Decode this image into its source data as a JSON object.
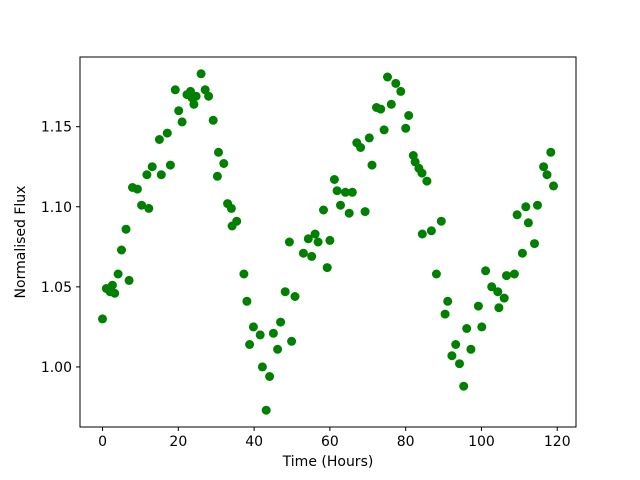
{
  "figure": {
    "background_color": "#ffffff"
  },
  "chart_data": {
    "type": "scatter",
    "title": "",
    "xlabel": "Time (Hours)",
    "ylabel": "Normalised Flux",
    "legend": null,
    "grid": false,
    "marker_color": "#008000",
    "marker_radius_px": 4.5,
    "xlim": [
      -5.95,
      124.95
    ],
    "ylim": [
      0.9625,
      1.1935
    ],
    "xticks": [
      "0",
      "20",
      "40",
      "60",
      "80",
      "100",
      "120"
    ],
    "yticks": [
      "1.00",
      "1.05",
      "1.10",
      "1.15"
    ],
    "points": [
      [
        0.0,
        1.03
      ],
      [
        1.0,
        1.049
      ],
      [
        2.0,
        1.047
      ],
      [
        2.6,
        1.051
      ],
      [
        3.2,
        1.046
      ],
      [
        4.1,
        1.058
      ],
      [
        5.0,
        1.073
      ],
      [
        6.2,
        1.086
      ],
      [
        7.0,
        1.054
      ],
      [
        7.9,
        1.112
      ],
      [
        9.2,
        1.111
      ],
      [
        10.3,
        1.101
      ],
      [
        11.7,
        1.12
      ],
      [
        12.2,
        1.099
      ],
      [
        13.1,
        1.125
      ],
      [
        15.0,
        1.142
      ],
      [
        15.5,
        1.12
      ],
      [
        17.1,
        1.146
      ],
      [
        17.9,
        1.126
      ],
      [
        19.2,
        1.173
      ],
      [
        20.1,
        1.16
      ],
      [
        21.0,
        1.153
      ],
      [
        22.3,
        1.17
      ],
      [
        23.2,
        1.172
      ],
      [
        23.6,
        1.168
      ],
      [
        24.1,
        1.164
      ],
      [
        24.7,
        1.169
      ],
      [
        26.0,
        1.183
      ],
      [
        27.1,
        1.173
      ],
      [
        28.0,
        1.169
      ],
      [
        29.2,
        1.154
      ],
      [
        30.3,
        1.119
      ],
      [
        30.6,
        1.134
      ],
      [
        32.0,
        1.127
      ],
      [
        33.0,
        1.102
      ],
      [
        34.0,
        1.099
      ],
      [
        34.2,
        1.088
      ],
      [
        35.4,
        1.091
      ],
      [
        37.3,
        1.058
      ],
      [
        38.1,
        1.041
      ],
      [
        38.8,
        1.014
      ],
      [
        39.8,
        1.025
      ],
      [
        41.6,
        1.02
      ],
      [
        42.2,
        1.0
      ],
      [
        43.2,
        0.973
      ],
      [
        44.1,
        0.994
      ],
      [
        45.1,
        1.021
      ],
      [
        46.2,
        1.011
      ],
      [
        47.0,
        1.028
      ],
      [
        48.2,
        1.047
      ],
      [
        49.3,
        1.078
      ],
      [
        49.9,
        1.016
      ],
      [
        50.8,
        1.044
      ],
      [
        53.0,
        1.071
      ],
      [
        54.3,
        1.08
      ],
      [
        55.2,
        1.069
      ],
      [
        56.1,
        1.083
      ],
      [
        56.9,
        1.078
      ],
      [
        58.3,
        1.098
      ],
      [
        59.3,
        1.062
      ],
      [
        60.0,
        1.079
      ],
      [
        61.2,
        1.117
      ],
      [
        61.9,
        1.11
      ],
      [
        62.8,
        1.101
      ],
      [
        64.1,
        1.109
      ],
      [
        65.1,
        1.096
      ],
      [
        65.9,
        1.109
      ],
      [
        67.1,
        1.14
      ],
      [
        68.1,
        1.137
      ],
      [
        69.3,
        1.097
      ],
      [
        70.4,
        1.143
      ],
      [
        71.1,
        1.126
      ],
      [
        72.3,
        1.162
      ],
      [
        73.4,
        1.161
      ],
      [
        74.3,
        1.148
      ],
      [
        75.2,
        1.181
      ],
      [
        76.2,
        1.164
      ],
      [
        77.4,
        1.177
      ],
      [
        78.7,
        1.172
      ],
      [
        80.0,
        1.149
      ],
      [
        80.8,
        1.157
      ],
      [
        82.0,
        1.132
      ],
      [
        82.5,
        1.128
      ],
      [
        83.5,
        1.124
      ],
      [
        84.3,
        1.121
      ],
      [
        84.4,
        1.083
      ],
      [
        85.6,
        1.116
      ],
      [
        86.8,
        1.085
      ],
      [
        88.1,
        1.058
      ],
      [
        89.4,
        1.091
      ],
      [
        90.4,
        1.033
      ],
      [
        91.1,
        1.041
      ],
      [
        92.2,
        1.007
      ],
      [
        93.2,
        1.014
      ],
      [
        94.2,
        1.002
      ],
      [
        95.3,
        0.988
      ],
      [
        96.1,
        1.024
      ],
      [
        97.2,
        1.011
      ],
      [
        99.2,
        1.038
      ],
      [
        100.1,
        1.025
      ],
      [
        101.1,
        1.06
      ],
      [
        102.7,
        1.05
      ],
      [
        104.3,
        1.047
      ],
      [
        104.6,
        1.037
      ],
      [
        106.0,
        1.043
      ],
      [
        106.6,
        1.057
      ],
      [
        108.7,
        1.058
      ],
      [
        109.4,
        1.095
      ],
      [
        110.8,
        1.071
      ],
      [
        111.7,
        1.1
      ],
      [
        112.4,
        1.09
      ],
      [
        114.0,
        1.077
      ],
      [
        114.8,
        1.101
      ],
      [
        116.4,
        1.125
      ],
      [
        117.3,
        1.12
      ],
      [
        118.3,
        1.134
      ],
      [
        119.0,
        1.113
      ]
    ]
  }
}
